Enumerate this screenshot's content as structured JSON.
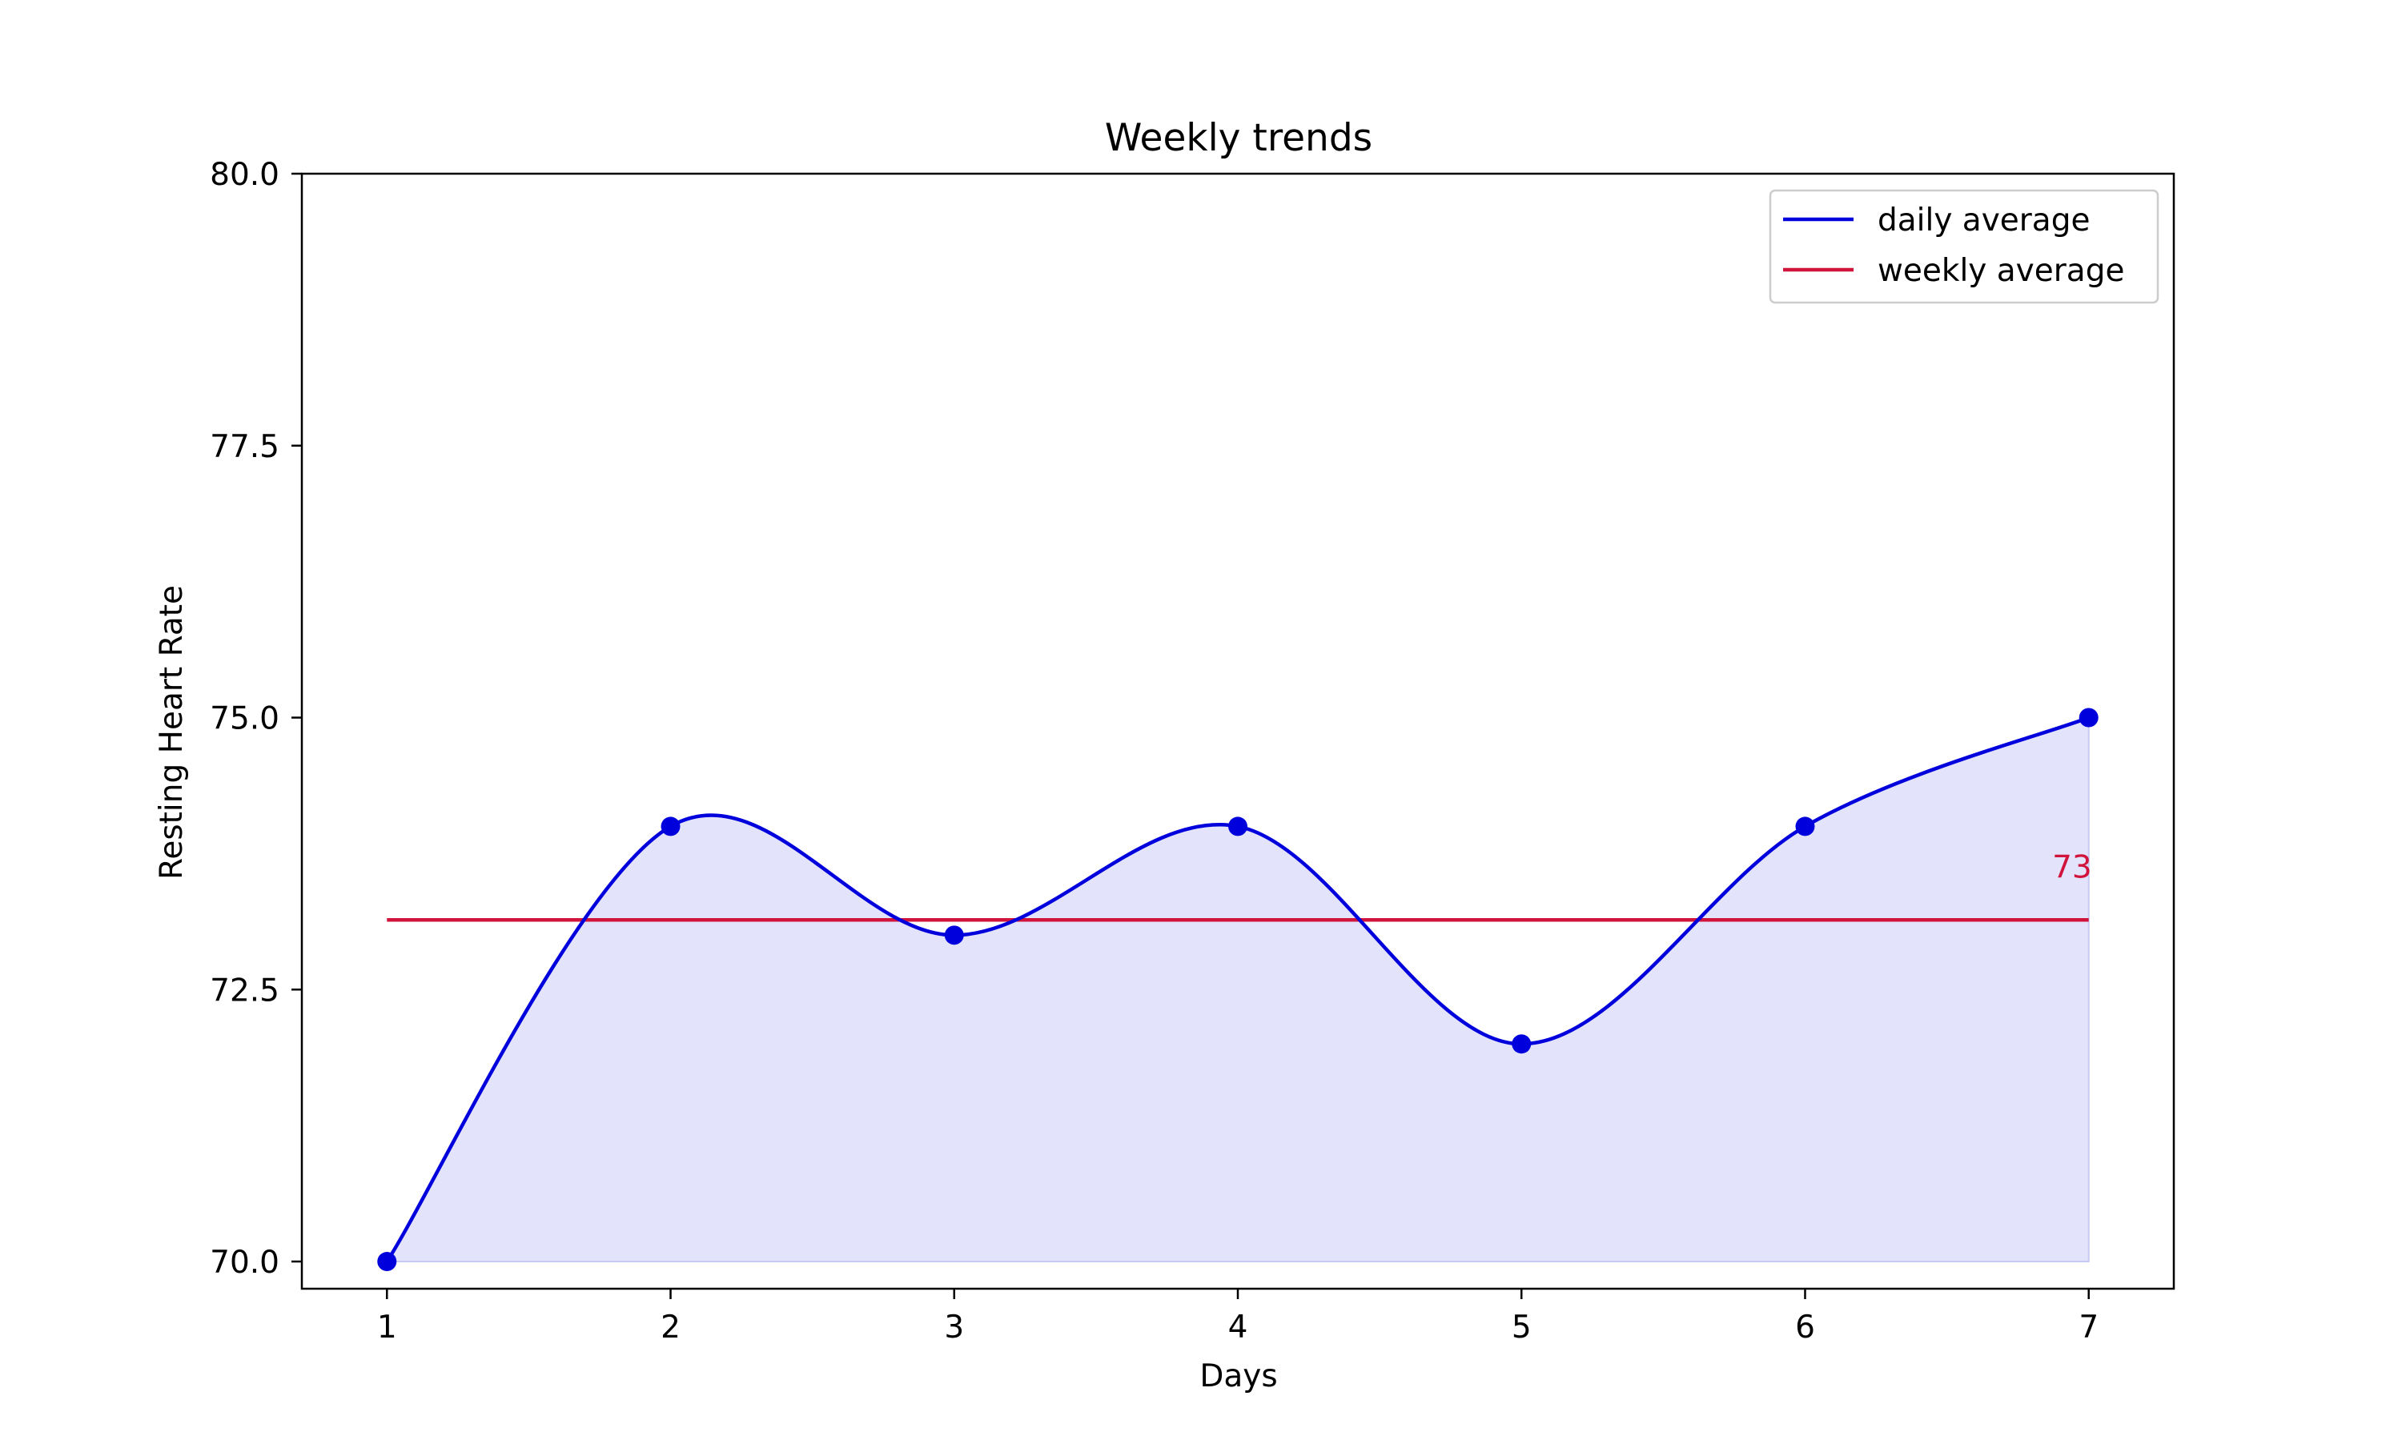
{
  "chart_data": {
    "type": "line",
    "title": "Weekly trends",
    "xlabel": "Days",
    "ylabel": "Resting Heart Rate",
    "x": [
      1,
      2,
      3,
      4,
      5,
      6,
      7
    ],
    "xticks": [
      "1",
      "2",
      "3",
      "4",
      "5",
      "6",
      "7"
    ],
    "yticks": [
      "70.0",
      "72.5",
      "75.0",
      "77.5",
      "80.0"
    ],
    "xlim": [
      0.7,
      7.3
    ],
    "ylim": [
      69.75,
      80.0
    ],
    "grid": false,
    "legend_position": "top-right",
    "series": [
      {
        "name": "daily average",
        "values": [
          70,
          74,
          73,
          74,
          72,
          74,
          75
        ],
        "color": "#0000dd",
        "smooth": true,
        "markers": true,
        "fill_to": 70,
        "fill_color": "#e3e3fb"
      },
      {
        "name": "weekly average",
        "values": [
          73.14,
          73.14,
          73.14,
          73.14,
          73.14,
          73.14,
          73.14
        ],
        "color": "#d0143c",
        "smooth": false,
        "markers": false
      }
    ],
    "annotations": [
      {
        "text": "73",
        "x": 7,
        "y": 73.14,
        "color": "#d0143c"
      }
    ]
  }
}
